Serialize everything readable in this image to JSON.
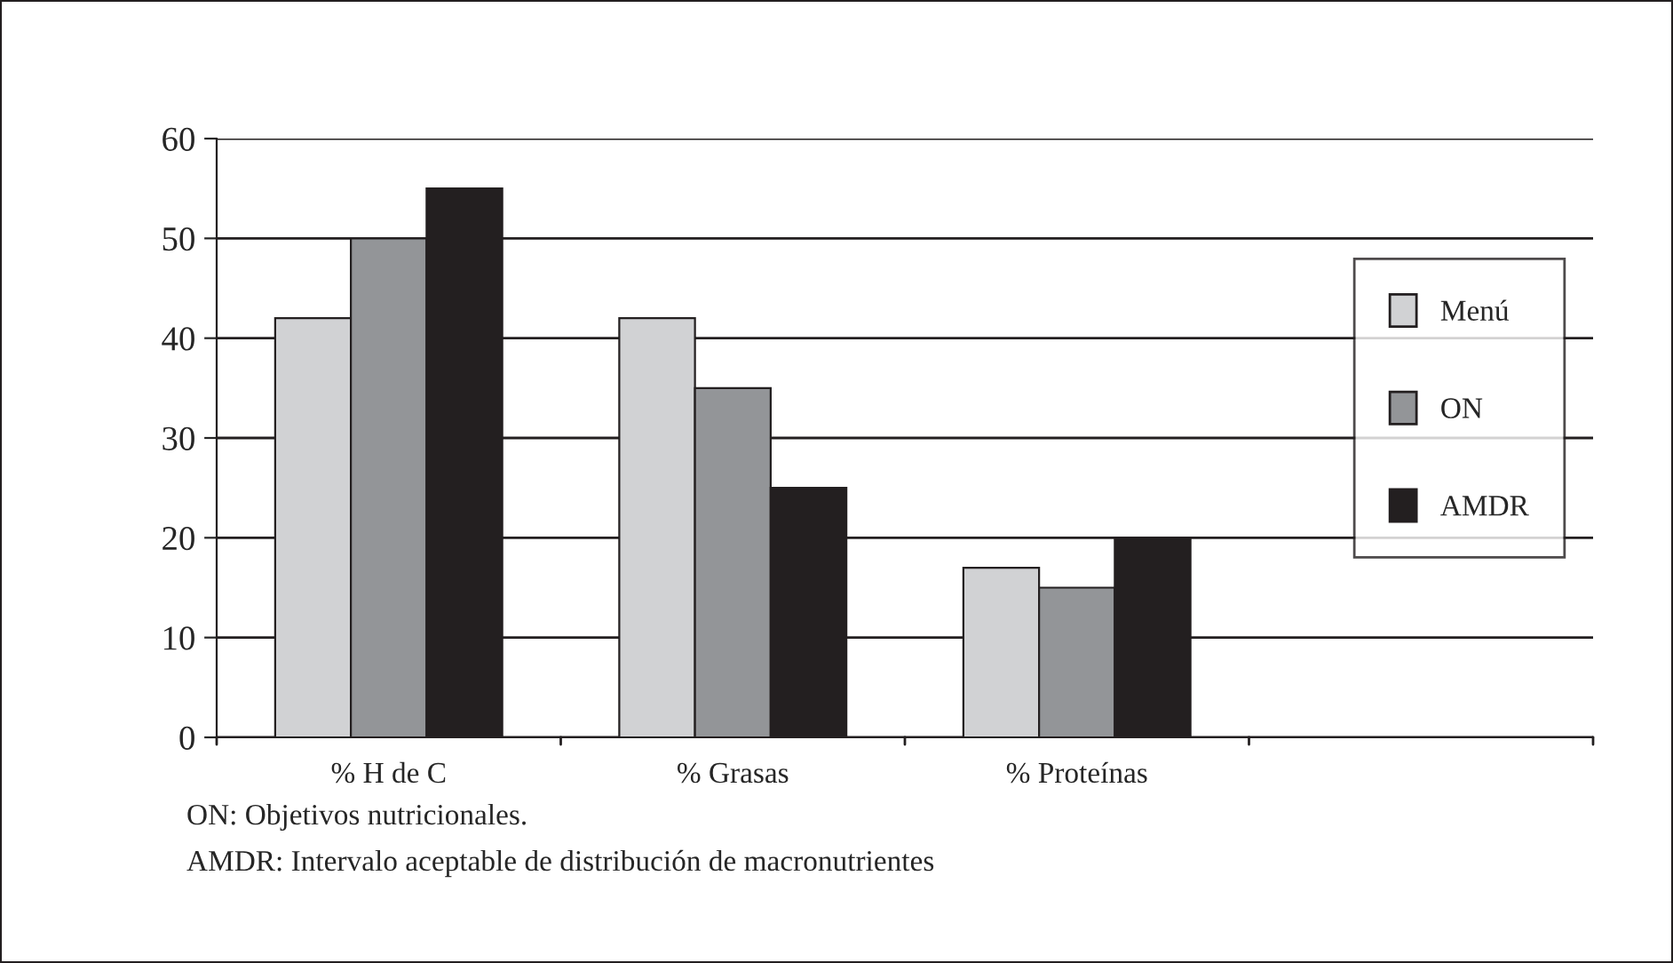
{
  "chart_data": {
    "type": "bar",
    "categories": [
      "% H de C",
      "% Grasas",
      "% Proteínas",
      null
    ],
    "series": [
      {
        "name": "Menú",
        "color": "#d1d2d4",
        "values": [
          42,
          42,
          17,
          null
        ]
      },
      {
        "name": "ON",
        "color": "#939598",
        "values": [
          50,
          35,
          15,
          null
        ]
      },
      {
        "name": "AMDR",
        "color": "#231f20",
        "values": [
          55,
          25,
          20,
          null
        ]
      }
    ],
    "ylim": [
      0,
      60
    ],
    "yticks": [
      0,
      10,
      20,
      30,
      40,
      50,
      60
    ],
    "grid": "y",
    "legend": "right",
    "annotations": [
      "ON: Objetivos nutricionales.",
      "AMDR: Intervalo aceptable de distribución de macronutrientes"
    ]
  }
}
